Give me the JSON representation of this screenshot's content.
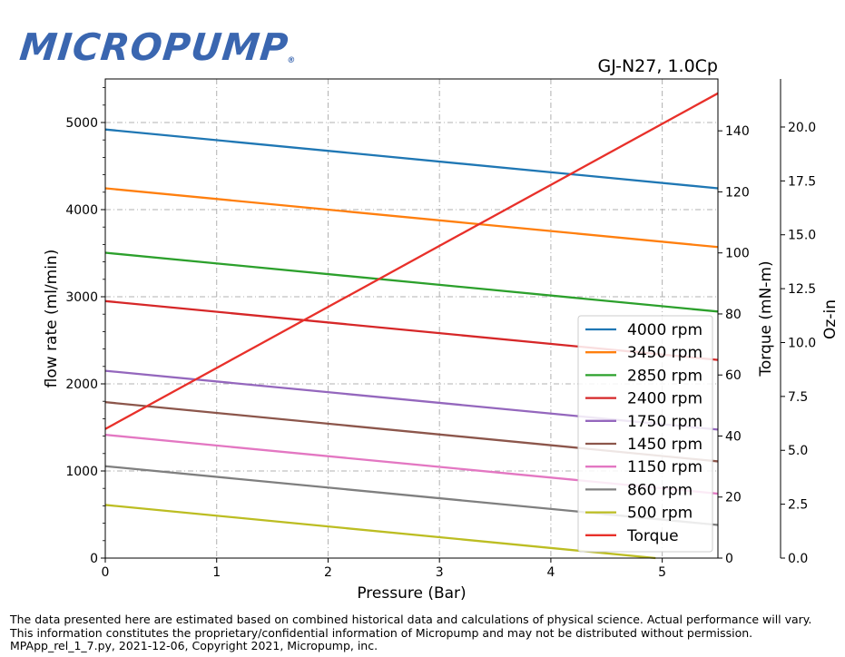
{
  "logo_text": "MICROPUMP",
  "logo_mark": "®",
  "chart_data": {
    "type": "line",
    "title": "GJ-N27,  1.0Cp",
    "xlabel": "Pressure (Bar)",
    "ylabel": "flow rate (ml/min)",
    "ylabel_right": "Torque (mN-m)",
    "ylabel_right2": "Oz-in",
    "xlim": [
      0,
      5.5
    ],
    "ylim": [
      0,
      5500
    ],
    "ylim_right": [
      0,
      157
    ],
    "ylim_right2": [
      0,
      22.23
    ],
    "x_ticks": [
      "0",
      "1",
      "2",
      "3",
      "4",
      "5"
    ],
    "y_ticks": [
      "0",
      "1000",
      "2000",
      "3000",
      "4000",
      "5000"
    ],
    "y_right_ticks": [
      "0",
      "20",
      "40",
      "60",
      "80",
      "100",
      "120",
      "140"
    ],
    "y_right2_ticks": [
      "0.0",
      "2.5",
      "5.0",
      "7.5",
      "10.0",
      "12.5",
      "15.0",
      "17.5",
      "20.0"
    ],
    "grid": true,
    "legend_position": "lower-right",
    "series": [
      {
        "name": "4000 rpm",
        "color": "#1f77b4",
        "axis": "left",
        "x": [
          0,
          5.5
        ],
        "y": [
          4920,
          4245
        ]
      },
      {
        "name": "3450 rpm",
        "color": "#ff7f0e",
        "axis": "left",
        "x": [
          0,
          5.5
        ],
        "y": [
          4245,
          3570
        ]
      },
      {
        "name": "2850 rpm",
        "color": "#2ca02c",
        "axis": "left",
        "x": [
          0,
          5.5
        ],
        "y": [
          3505,
          2830
        ]
      },
      {
        "name": "2400 rpm",
        "color": "#d62728",
        "axis": "left",
        "x": [
          0,
          5.5
        ],
        "y": [
          2950,
          2275
        ]
      },
      {
        "name": "1750 rpm",
        "color": "#9467bd",
        "axis": "left",
        "x": [
          0,
          5.5
        ],
        "y": [
          2150,
          1475
        ]
      },
      {
        "name": "1450 rpm",
        "color": "#8c564b",
        "axis": "left",
        "x": [
          0,
          5.5
        ],
        "y": [
          1790,
          1110
        ]
      },
      {
        "name": "1150 rpm",
        "color": "#e377c2",
        "axis": "left",
        "x": [
          0,
          5.5
        ],
        "y": [
          1415,
          740
        ]
      },
      {
        "name": "860 rpm",
        "color": "#7f7f7f",
        "axis": "left",
        "x": [
          0,
          5.5
        ],
        "y": [
          1055,
          380
        ]
      },
      {
        "name": "500 rpm",
        "color": "#bcbd22",
        "axis": "left",
        "x": [
          0,
          4.94
        ],
        "y": [
          610,
          0
        ]
      },
      {
        "name": "Torque",
        "color": "#e8302a",
        "axis": "right",
        "x": [
          0,
          5.5
        ],
        "y": [
          42.3,
          152.3
        ]
      }
    ]
  },
  "disclaimer": [
    "The data presented here are estimated based on combined historical data and calculations of physical science.  Actual performance will vary.",
    "This information constitutes the proprietary/confidential information of Micropump and may not be distributed without permission.",
    "MPApp_rel_1_7.py, 2021-12-06, Copyright 2021, Micropump, inc."
  ]
}
